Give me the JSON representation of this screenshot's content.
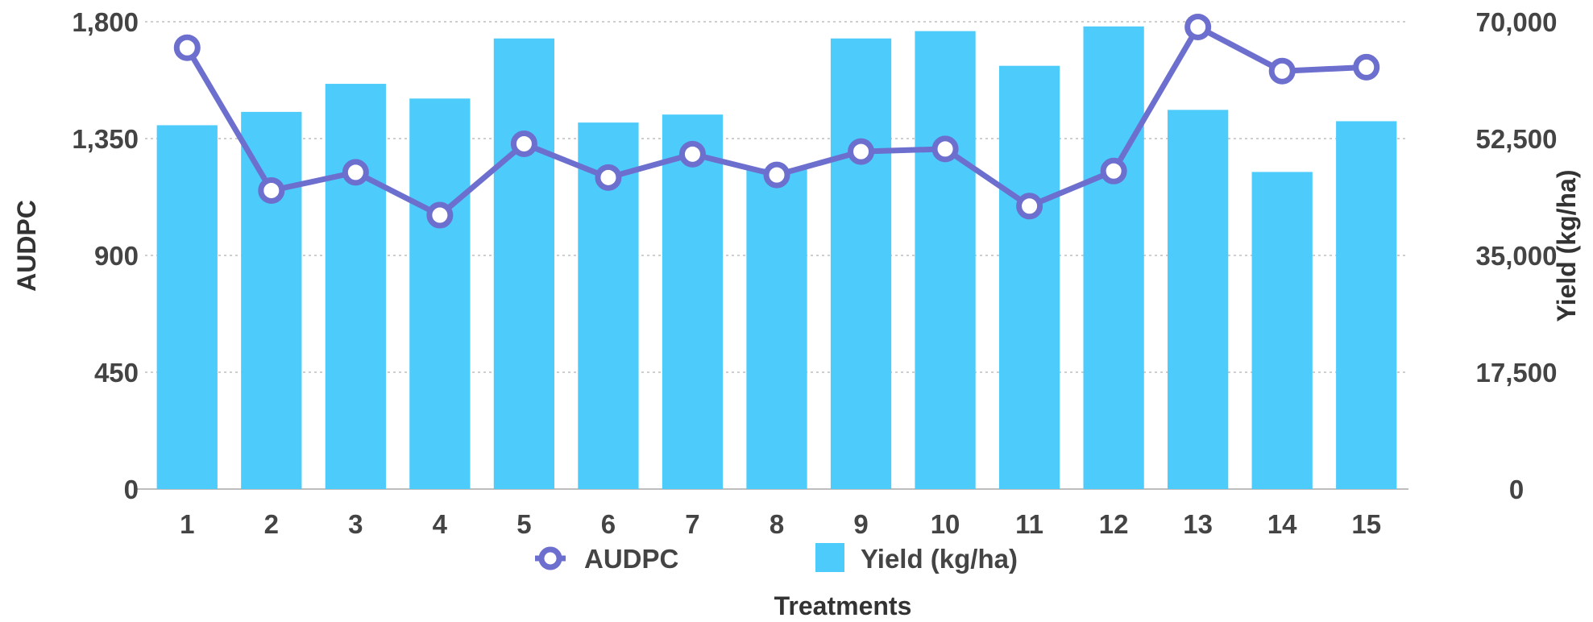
{
  "chart_data": {
    "type": "bar+line",
    "categories": [
      "1",
      "2",
      "3",
      "4",
      "5",
      "6",
      "7",
      "8",
      "9",
      "10",
      "11",
      "12",
      "13",
      "14",
      "15"
    ],
    "series": [
      {
        "name": "AUDPC",
        "type": "line",
        "axis": "left",
        "values": [
          1700,
          1150,
          1220,
          1055,
          1330,
          1200,
          1290,
          1210,
          1300,
          1310,
          1090,
          1225,
          1780,
          1610,
          1625
        ]
      },
      {
        "name": "Yield (kg/ha)",
        "type": "bar",
        "axis": "right",
        "values": [
          54500,
          56500,
          60700,
          58500,
          67500,
          54900,
          56100,
          48000,
          67500,
          68600,
          63400,
          69300,
          56800,
          47500,
          55100
        ]
      }
    ],
    "left_axis": {
      "label": "AUDPC",
      "ylim": [
        0,
        1800
      ],
      "ticks": [
        "0",
        "450",
        "900",
        "1,350",
        "1,800"
      ]
    },
    "right_axis": {
      "label": "Yield (kg/ha)",
      "ylim": [
        0,
        70000
      ],
      "ticks": [
        "0",
        "17,500",
        "35,000",
        "52,500",
        "70,000"
      ]
    },
    "xlabel": "Treatments",
    "grid": true,
    "legend_position": "bottom",
    "colors": {
      "line": "#6d6fcf",
      "bar": "#4dcbfb",
      "tick_text": "#444444",
      "grid": "#bdbdbd"
    }
  }
}
